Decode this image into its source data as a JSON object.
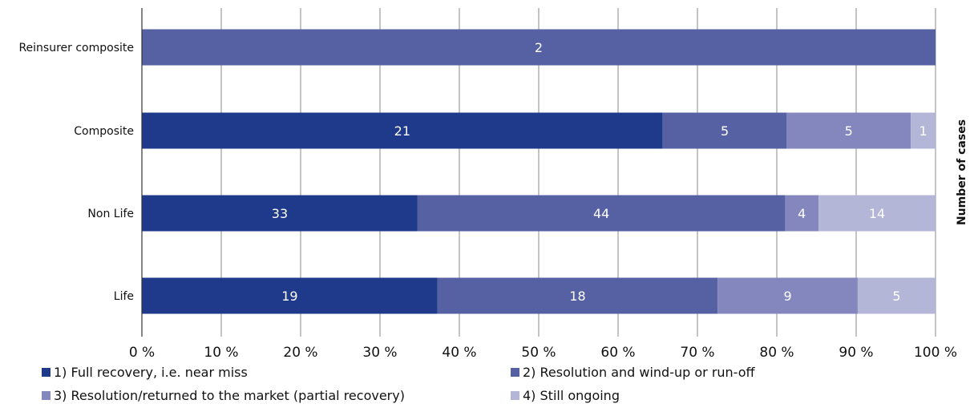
{
  "chart_data": {
    "type": "bar",
    "orientation": "horizontal",
    "stacked": true,
    "normalized_percent": true,
    "categories": [
      "Reinsurer composite",
      "Composite",
      "Non Life",
      "Life"
    ],
    "series": [
      {
        "name": "1) Full recovery, i.e. near miss",
        "values": [
          0,
          21,
          33,
          19
        ],
        "color": "#1f3a8a"
      },
      {
        "name": "2) Resolution and wind-up or run-off",
        "values": [
          2,
          5,
          44,
          18
        ],
        "color": "#5561a3"
      },
      {
        "name": "3) Resolution/returned to the market (partial recovery)",
        "values": [
          0,
          5,
          4,
          9
        ],
        "color": "#8387be"
      },
      {
        "name": "4) Still  ongoing",
        "values": [
          0,
          1,
          14,
          5
        ],
        "color": "#b4b6d8"
      }
    ],
    "x_ticks": [
      "0 %",
      "10 %",
      "20 %",
      "30 %",
      "40 %",
      "50 %",
      "60 %",
      "70 %",
      "80 %",
      "90 %",
      "100 %"
    ],
    "xlim": [
      0,
      100
    ],
    "ylabel": "Number of cases",
    "grid": "vertical",
    "legend": "bottom"
  }
}
